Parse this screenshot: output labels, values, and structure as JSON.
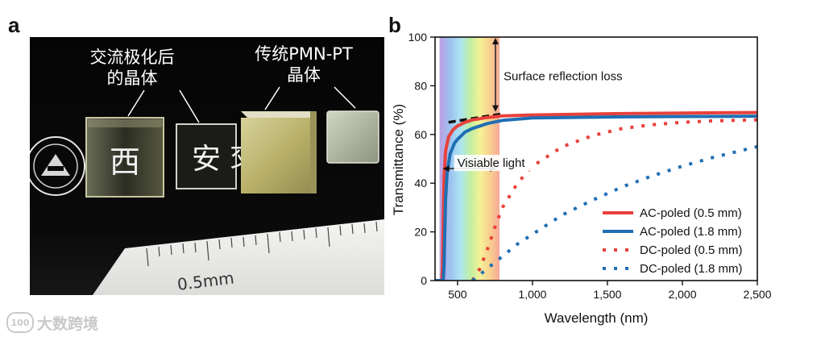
{
  "panels": {
    "a": "a",
    "b": "b"
  },
  "photo": {
    "label_ac_line1": "交流极化后",
    "label_ac_line2": "的晶体",
    "label_trad_line1": "传统PMN-PT",
    "label_trad_line2": "晶体",
    "ruler_text": "0.5mm",
    "behind_chars": [
      "西",
      "安",
      "交"
    ]
  },
  "watermark": {
    "text": "大数跨境",
    "logo_text": "100"
  },
  "chart_data": {
    "type": "line",
    "xlabel": "Wavelength (nm)",
    "ylabel": "Transmittance (%)",
    "xlim": [
      350,
      2500
    ],
    "ylim": [
      0,
      100
    ],
    "xticks": [
      500,
      1000,
      1500,
      2000,
      2500
    ],
    "xtick_labels": [
      "500",
      "1,000",
      "1,500",
      "2,000",
      "2,500"
    ],
    "yticks": [
      0,
      20,
      40,
      60,
      80,
      100
    ],
    "ytick_labels": [
      "0",
      "20",
      "40",
      "60",
      "80",
      "100"
    ],
    "visible_band": [
      380,
      780
    ],
    "annotations": {
      "reflection": "Surface reflection loss",
      "visible": "Visiable light"
    },
    "reflection_arrow": {
      "x": 780,
      "y_from": 69,
      "y_to": 100
    },
    "visible_arrow": {
      "y": 46,
      "x_from": 380,
      "x_to": 780
    },
    "dashed_guide": {
      "x": [
        440,
        800
      ],
      "y": [
        65,
        68.5
      ],
      "color": "#111111"
    },
    "series": [
      {
        "name": "AC-poled (0.5 mm)",
        "color": "#e8413b",
        "style": "solid",
        "x": [
          350,
          395,
          400,
          405,
          410,
          420,
          440,
          470,
          500,
          550,
          600,
          700,
          800,
          1000,
          1500,
          2000,
          2500
        ],
        "y": [
          0,
          0,
          5,
          25,
          42,
          53,
          59,
          62,
          63.5,
          65,
          66,
          67,
          67.6,
          68,
          68.5,
          68.8,
          69
        ]
      },
      {
        "name": "AC-poled (1.8 mm)",
        "color": "#1f6fb5",
        "style": "solid",
        "x": [
          350,
          405,
          410,
          415,
          420,
          430,
          450,
          480,
          500,
          550,
          600,
          700,
          800,
          1000,
          1500,
          2000,
          2500
        ],
        "y": [
          0,
          0,
          6,
          20,
          33,
          44,
          52,
          56.5,
          58,
          61,
          62.5,
          64.5,
          65.8,
          66.8,
          67.2,
          67.4,
          67.5
        ]
      },
      {
        "name": "DC-poled (0.5 mm)",
        "color": "#e8413b",
        "style": "dotted",
        "x": [
          600,
          650,
          700,
          750,
          800,
          900,
          1000,
          1200,
          1400,
          1600,
          1800,
          2000,
          2200,
          2500
        ],
        "y": [
          0,
          5,
          13,
          22,
          30,
          40,
          47,
          55,
          59.5,
          62.5,
          64,
          65,
          65.6,
          66
        ]
      },
      {
        "name": "DC-poled (1.8 mm)",
        "color": "#1f6fb5",
        "style": "dotted",
        "x": [
          600,
          700,
          800,
          900,
          1000,
          1200,
          1400,
          1600,
          1800,
          2000,
          2200,
          2500
        ],
        "y": [
          0,
          5,
          10,
          15,
          19,
          27,
          33,
          38.5,
          43,
          47,
          50.5,
          55
        ]
      }
    ]
  }
}
